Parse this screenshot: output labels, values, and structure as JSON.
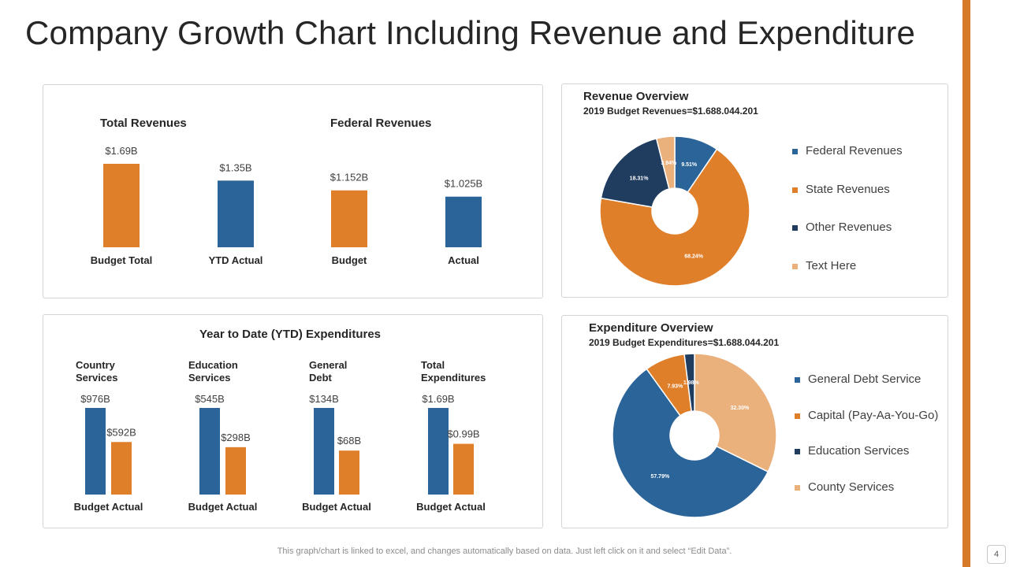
{
  "page": {
    "title": "Company Growth Chart Including Revenue and Expenditure",
    "footer_note": "This graph/chart is linked to excel,  and changes automatically based on data. Just left click on it and select “Edit Data”.",
    "page_number": "4",
    "accent_color": "#D67A2A"
  },
  "colors": {
    "blue": "#2B6499",
    "orange": "#E07F2A",
    "navy": "#203C5F",
    "tan": "#EBB17D",
    "label_dark": "#262626",
    "value_text": "#404040"
  },
  "chart_data": [
    {
      "id": "total-revenues",
      "type": "bar",
      "title": "Total Revenues",
      "categories": [
        "Budget Total",
        "YTD Actual"
      ],
      "values": [
        1.69,
        1.35
      ],
      "value_labels": [
        "$1.69B",
        "$1.35B"
      ],
      "bar_colors": [
        "orange",
        "blue"
      ],
      "unit": "$B",
      "ylim": [
        0,
        1.69
      ]
    },
    {
      "id": "federal-revenues",
      "type": "bar",
      "title": "Federal Revenues",
      "categories": [
        "Budget",
        "Actual"
      ],
      "values": [
        1.152,
        1.025
      ],
      "value_labels": [
        "$1.152B",
        "$1.025B"
      ],
      "bar_colors": [
        "orange",
        "blue"
      ],
      "unit": "$B",
      "ylim": [
        0,
        1.69
      ]
    },
    {
      "id": "ytd-expenditures",
      "type": "bar",
      "title": "Year to Date (YTD) Expenditures",
      "groups": [
        {
          "name": [
            "Country",
            "Services"
          ],
          "axis_label": "Budget Actual",
          "budget": 976,
          "actual": 592,
          "budget_label": "$976B",
          "actual_label": "$592B"
        },
        {
          "name": [
            "Education",
            "Services"
          ],
          "axis_label": "Budget Actual",
          "budget": 545,
          "actual": 298,
          "budget_label": "$545B",
          "actual_label": "$298B"
        },
        {
          "name": [
            "General",
            "Debt"
          ],
          "axis_label": "Budget Actual",
          "budget": 134,
          "actual": 68,
          "budget_label": "$134B",
          "actual_label": "$68B"
        },
        {
          "name": [
            "Total",
            "Expenditures"
          ],
          "axis_label": "Budget Actual",
          "budget": 1.69,
          "actual": 0.99,
          "budget_label": "$1.69B",
          "actual_label": "$0.99B"
        }
      ],
      "series": [
        {
          "name": "Budget",
          "color": "blue"
        },
        {
          "name": "Actual",
          "color": "orange"
        }
      ]
    },
    {
      "id": "revenue-overview",
      "type": "pie",
      "donut": true,
      "title": "Revenue Overview",
      "subtitle": "2019 Budget Revenues=$1.688.044.201",
      "slices": [
        {
          "name": "Federal Revenues",
          "value": 9.51,
          "label": "9.51%",
          "color": "blue"
        },
        {
          "name": "State Revenues",
          "value": 68.24,
          "label": "68.24%",
          "color": "orange"
        },
        {
          "name": "Other Revenues",
          "value": 18.31,
          "label": "18.31%",
          "color": "navy"
        },
        {
          "name": "Text Here",
          "value": 3.94,
          "label": "3.94%",
          "color": "tan"
        }
      ],
      "legend_position": "right"
    },
    {
      "id": "expenditure-overview",
      "type": "pie",
      "donut": true,
      "title": "Expenditure Overview",
      "subtitle": "2019 Budget Expenditures=$1.688.044.201",
      "slices": [
        {
          "name": "County Services",
          "value": 32.3,
          "label": "32.30%",
          "color": "tan"
        },
        {
          "name": "General Debt Service",
          "value": 57.79,
          "label": "57.79%",
          "color": "blue"
        },
        {
          "name": "Capital (Pay-Aa-You-Go)",
          "value": 7.93,
          "label": "7.93%",
          "color": "orange"
        },
        {
          "name": "Education Services",
          "value": 1.98,
          "label": "1.98%",
          "color": "navy"
        }
      ],
      "legend": [
        "General Debt Service",
        "Capital (Pay-Aa-You-Go)",
        "Education Services",
        "County Services"
      ],
      "legend_position": "right"
    }
  ]
}
